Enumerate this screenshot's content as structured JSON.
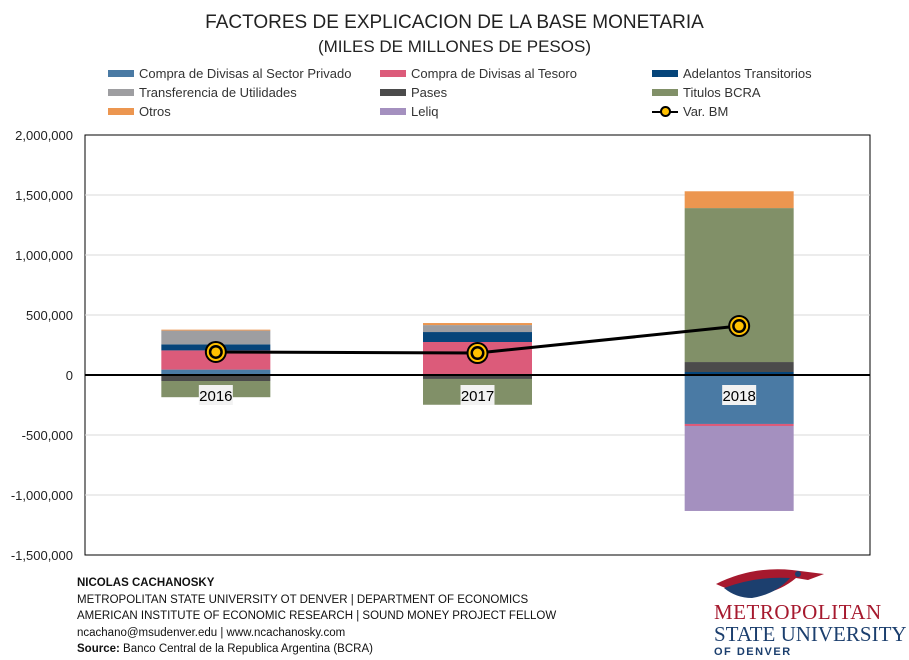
{
  "chart_data": {
    "type": "bar",
    "stacked": true,
    "title": "FACTORES  DE EXPLICACION  DE LA BASE MONETARIA",
    "subtitle": "(MILES DE MILLONES DE PESOS)",
    "categories": [
      "2016",
      "2017",
      "2018"
    ],
    "ylim": [
      -1500000,
      2000000
    ],
    "yticks": [
      -1500000,
      -1000000,
      -500000,
      0,
      500000,
      1000000,
      1500000,
      2000000
    ],
    "ytick_labels": [
      "-1,500,000",
      "-1,000,000",
      "-500,000",
      "0",
      "500,000",
      "1,000,000",
      "1,500,000",
      "2,000,000"
    ],
    "grid": true,
    "legend_position": "top",
    "series": [
      {
        "name": "Compra de Divisas al Sector Privado",
        "color": "#4a7aa4",
        "values": [
          45000,
          0,
          -408000
        ]
      },
      {
        "name": "Compra de Divisas al Tesoro",
        "color": "#dc5b7a",
        "values": [
          160000,
          275000,
          -17000
        ]
      },
      {
        "name": "Adelantos Transitorios",
        "color": "#06457a",
        "values": [
          50000,
          83000,
          25000
        ]
      },
      {
        "name": "Transferencia de Utilidades",
        "color": "#9e9ea1",
        "values": [
          115000,
          58000,
          0
        ]
      },
      {
        "name": "Pases",
        "color": "#4b4b4b",
        "values": [
          -50000,
          -33000,
          83000
        ]
      },
      {
        "name": "Titulos BCRA",
        "color": "#819068",
        "values": [
          -135000,
          -215000,
          1283000
        ]
      },
      {
        "name": "Otros",
        "color": "#ec9650",
        "values": [
          8000,
          17000,
          140000
        ]
      },
      {
        "name": "Leliq",
        "color": "#a490bf",
        "values": [
          0,
          0,
          -708000
        ]
      }
    ],
    "line": {
      "name": "Var. BM",
      "color": "#000000",
      "marker_color": "#ffc000",
      "values": [
        192000,
        183000,
        408000
      ]
    }
  },
  "footer": {
    "author": "NICOLAS CACHANOSKY",
    "line1": "METROPOLITAN  STATE UNIVERSITY  OT DENVER   |  DEPARTMENT  OF ECONOMICS",
    "line2": "AMERICAN  INSTITUTE OF ECONOMIC RESEARCH   |  SOUND MONEY PROJECT FELLOW",
    "line3": "ncachano@msudenver.edu  |  www.ncachanosky.com",
    "source_label": "Source:",
    "source": " Banco Central de la Republica Argentina (BCRA)"
  },
  "logo": {
    "line1": "METROPOLITAN",
    "line2": "STATE UNIVERSITY",
    "line3": "OF DENVER"
  }
}
